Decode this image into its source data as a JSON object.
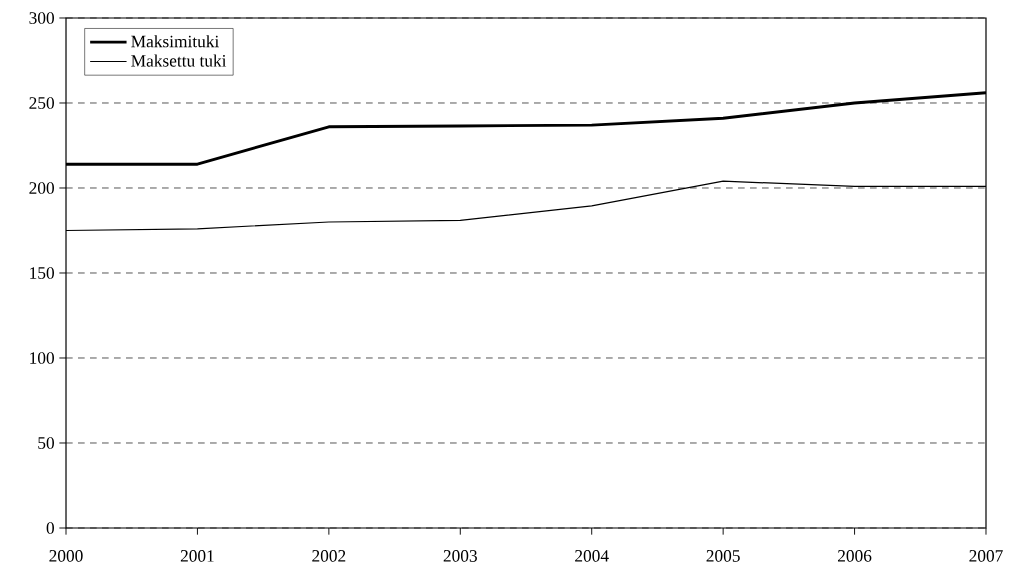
{
  "chart_data": {
    "type": "line",
    "x": [
      2000,
      2001,
      2002,
      2003,
      2004,
      2005,
      2006,
      2007
    ],
    "series": [
      {
        "name": "Maksimituki",
        "color": "#000000",
        "values": [
          214,
          214,
          236,
          236.5,
          237,
          241,
          250,
          256
        ]
      },
      {
        "name": "Maksettu tuki",
        "color": "#000000",
        "values": [
          175,
          176,
          180,
          181,
          189.5,
          204,
          201,
          201
        ]
      }
    ],
    "xlim": [
      2000,
      2007
    ],
    "xticks": [
      2000,
      2001,
      2002,
      2003,
      2004,
      2005,
      2006,
      2007
    ],
    "ylim": [
      0,
      300
    ],
    "yticks": [
      0,
      50,
      100,
      150,
      200,
      250,
      300
    ],
    "grid": "y",
    "legend": "top left",
    "line_style": "solid",
    "marker": "none"
  }
}
